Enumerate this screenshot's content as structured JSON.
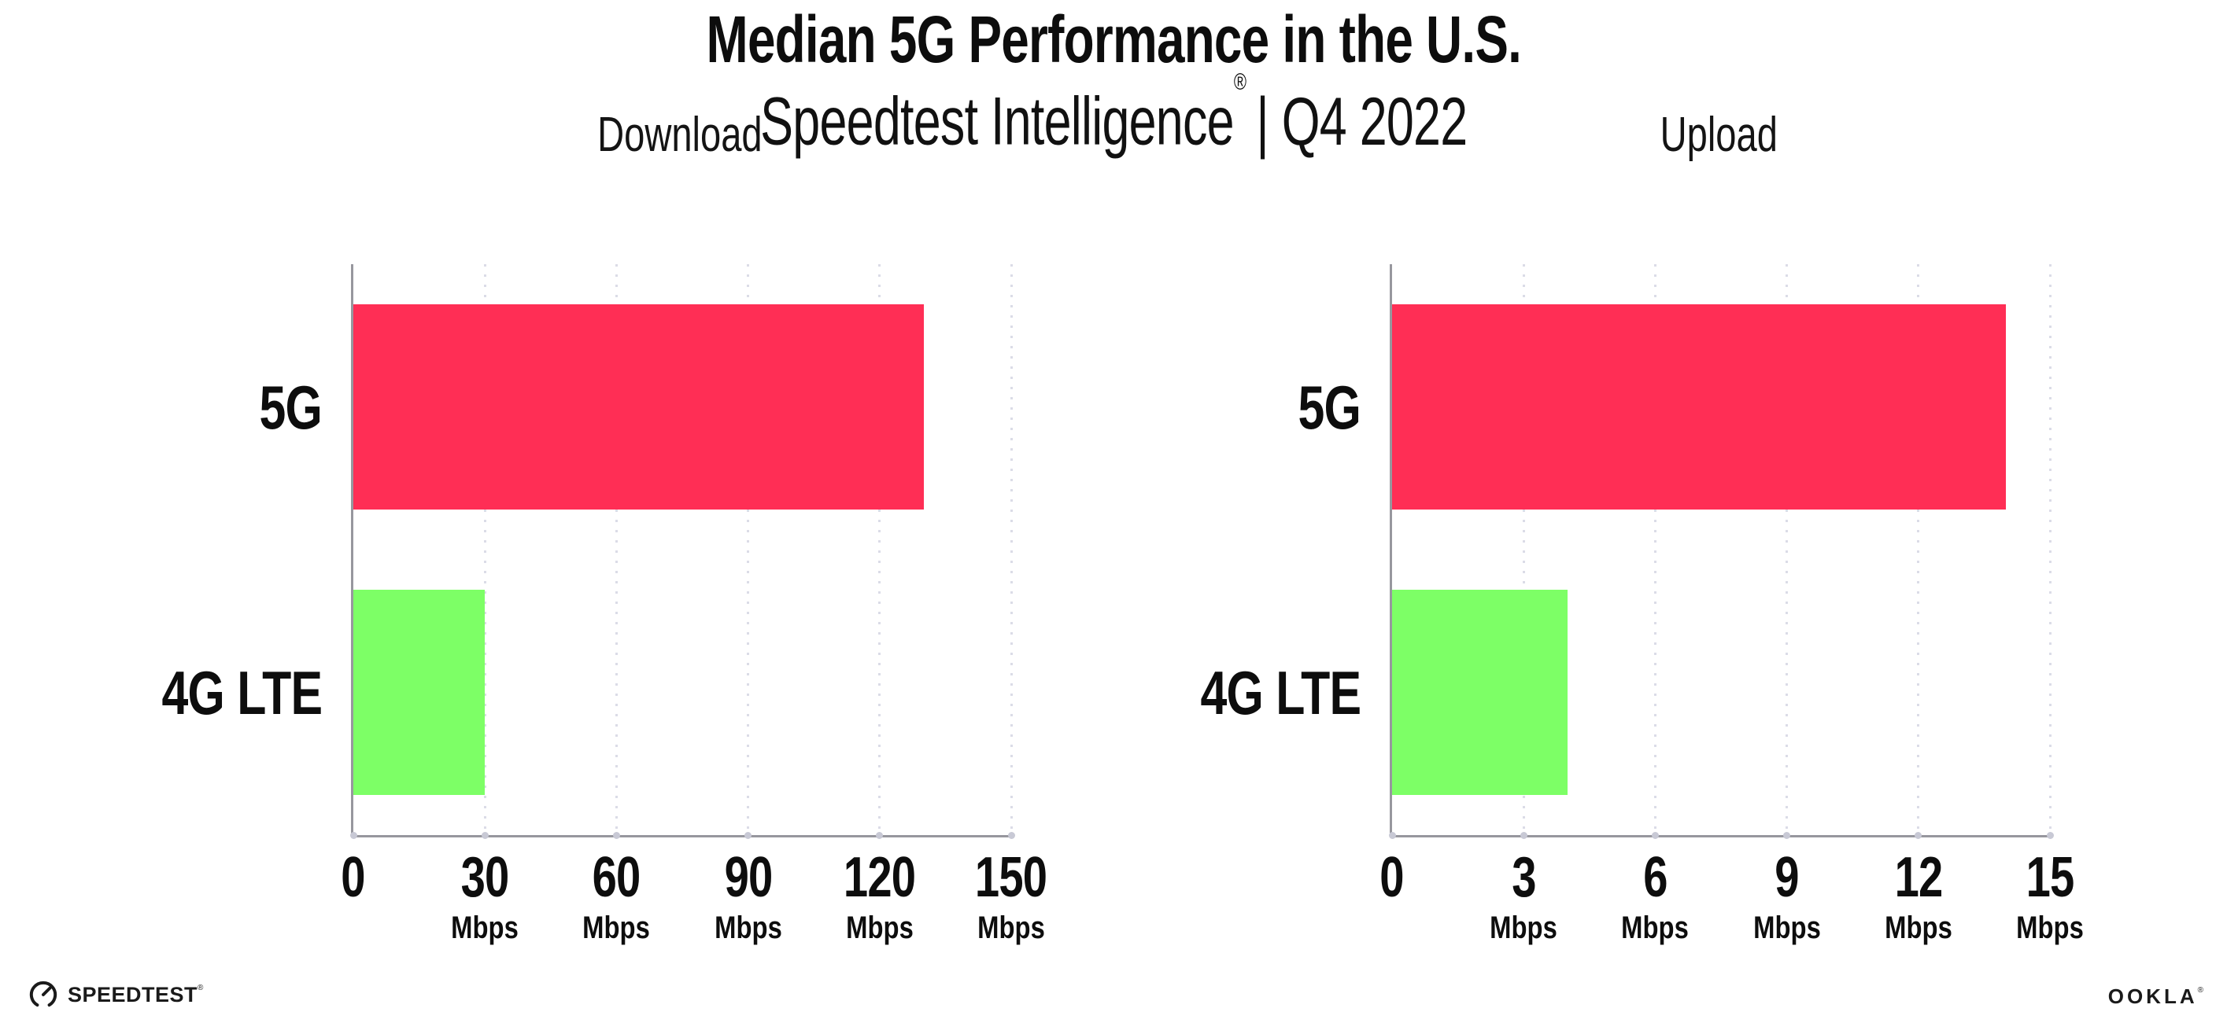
{
  "header": {
    "title": "Median 5G Performance in the U.S.",
    "subtitle_brand": "Speedtest Intelligence",
    "subtitle_reg": "®",
    "subtitle_rest": "| Q4 2022"
  },
  "chart_data": [
    {
      "type": "bar",
      "orientation": "horizontal",
      "title": "Download",
      "categories": [
        "5G",
        "4G LTE"
      ],
      "values": [
        130,
        30
      ],
      "unit": "Mbps",
      "xlim": [
        0,
        150
      ],
      "xticks": [
        0,
        30,
        60,
        90,
        120,
        150
      ],
      "bar_colors": [
        "#FF2E55",
        "#7DFF66"
      ],
      "grid": "dotted-vertical",
      "legend": "none"
    },
    {
      "type": "bar",
      "orientation": "horizontal",
      "title": "Upload",
      "categories": [
        "5G",
        "4G LTE"
      ],
      "values": [
        14,
        4
      ],
      "unit": "Mbps",
      "xlim": [
        0,
        15
      ],
      "xticks": [
        0,
        3,
        6,
        9,
        12,
        15
      ],
      "bar_colors": [
        "#FF2E55",
        "#7DFF66"
      ],
      "grid": "dotted-vertical",
      "legend": "none"
    }
  ],
  "footer": {
    "speedtest_label": "SPEEDTEST",
    "speedtest_reg": "®",
    "ookla_label": "OOKLA",
    "ookla_reg": "®"
  },
  "colors": {
    "bar_5g": "#FF2E55",
    "bar_4g_lte": "#7DFF66",
    "axis": "#97979E",
    "gridline": "#DBDCE7",
    "text": "#0D0D0D"
  }
}
